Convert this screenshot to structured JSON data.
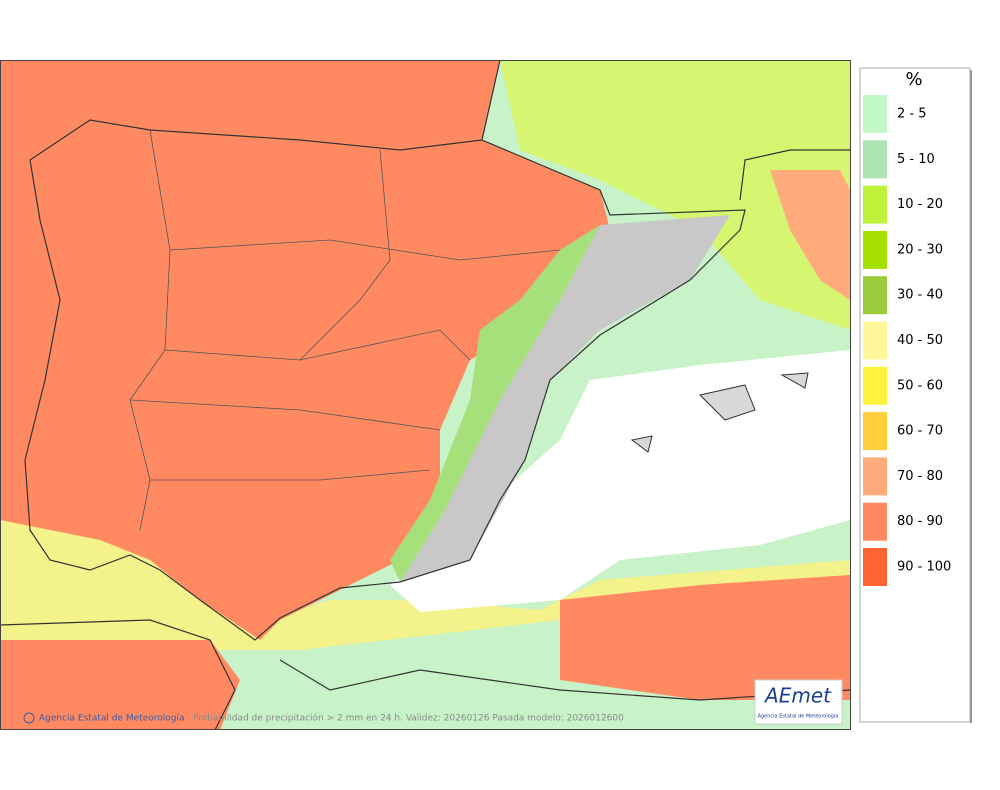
{
  "legend": {
    "title": "%",
    "items": [
      {
        "label": "2 - 5",
        "color": "#c2f7c8"
      },
      {
        "label": "5 - 10",
        "color": "#aee3b4"
      },
      {
        "label": "10 - 20",
        "color": "#c0f23c"
      },
      {
        "label": "20 - 30",
        "color": "#a6e000"
      },
      {
        "label": "30 - 40",
        "color": "#9ccc3c"
      },
      {
        "label": "40 - 50",
        "color": "#fff79a"
      },
      {
        "label": "50 - 60",
        "color": "#fff23e"
      },
      {
        "label": "60 - 70",
        "color": "#ffd03c"
      },
      {
        "label": "70 - 80",
        "color": "#ffab7c"
      },
      {
        "label": "80 - 90",
        "color": "#ff8a62"
      },
      {
        "label": "90 - 100",
        "color": "#ff6534"
      }
    ]
  },
  "footer": {
    "agency": "Agencia Estatal de Meteorología",
    "caption": "Probabilidad de precipitación > 2 mm en 24 h. Validez: 20260126 Pasada modelo: 2026012600"
  },
  "logo": {
    "name": "AEmet",
    "subtitle": "Agencia Estatal de Meteorología"
  }
}
